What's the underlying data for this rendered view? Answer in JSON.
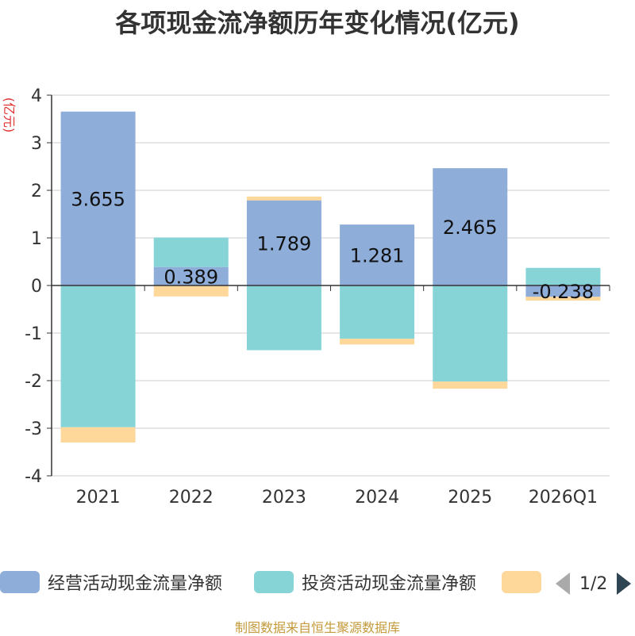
{
  "chart_data": {
    "type": "bar",
    "stacked": true,
    "title": "各项现金流净额历年变化情况(亿元)",
    "ylabel": "(亿元)",
    "xlabel": "",
    "ylim": [
      -4,
      4
    ],
    "yticks": [
      4,
      3,
      2,
      1,
      0,
      -1,
      -2,
      -3,
      -4
    ],
    "categories": [
      "2021",
      "2022",
      "2023",
      "2024",
      "2025",
      "2026Q1"
    ],
    "series": [
      {
        "name": "经营活动现金流量净额",
        "color": "#8eadd9",
        "values": [
          3.655,
          0.389,
          1.789,
          1.281,
          2.465,
          -0.238
        ],
        "labels": [
          "3.655",
          "0.389",
          "1.789",
          "1.281",
          "2.465",
          "-0.238"
        ]
      },
      {
        "name": "投资活动现金流量净额",
        "color": "#87d4d7",
        "values": [
          -2.98,
          0.62,
          -1.36,
          -1.12,
          -2.02,
          0.37
        ]
      },
      {
        "name": "",
        "color": "#fdd89a",
        "values": [
          -0.32,
          -0.23,
          0.08,
          -0.12,
          -0.15,
          -0.08
        ]
      }
    ],
    "legend_position": "bottom"
  },
  "legend": {
    "page": "1/2"
  },
  "source": "制图数据来自恒生聚源数据库"
}
